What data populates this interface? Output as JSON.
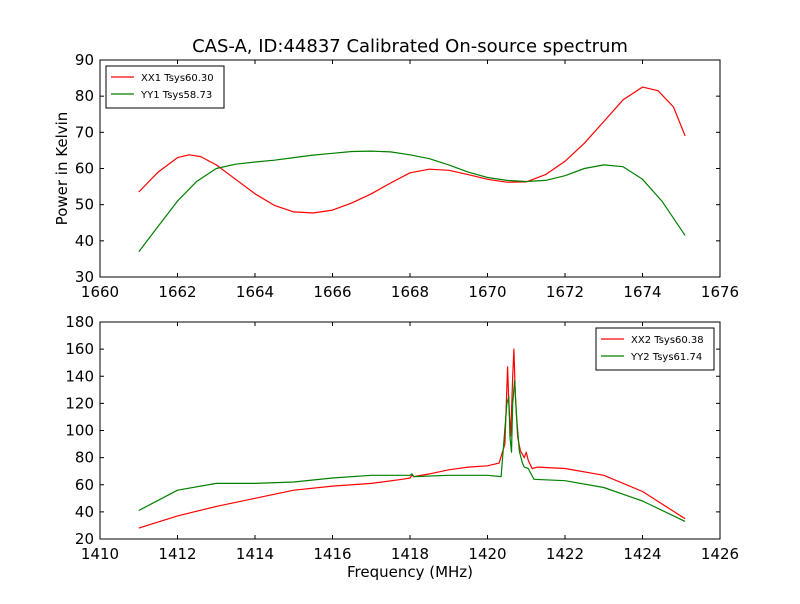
{
  "figure": {
    "title": "CAS-A, ID:44837 Calibrated On-source spectrum"
  },
  "chart_data": [
    {
      "type": "line",
      "title": "CAS-A, ID:44837 Calibrated On-source spectrum",
      "xlabel": "",
      "ylabel": "Power in Kelvin",
      "xlim": [
        1660,
        1676
      ],
      "ylim": [
        30,
        90
      ],
      "xticks": [
        1660,
        1662,
        1664,
        1666,
        1668,
        1670,
        1672,
        1674,
        1676
      ],
      "yticks": [
        30,
        40,
        50,
        60,
        70,
        80,
        90
      ],
      "legend_position": "top-left",
      "grid": false,
      "series": [
        {
          "name": "XX1 Tsys60.30",
          "color": "#ff0000",
          "x": [
            1661.0,
            1661.5,
            1662.0,
            1662.3,
            1662.6,
            1663.0,
            1663.5,
            1664.0,
            1664.5,
            1665.0,
            1665.5,
            1666.0,
            1666.5,
            1667.0,
            1667.5,
            1668.0,
            1668.5,
            1669.0,
            1669.5,
            1670.0,
            1670.5,
            1671.0,
            1671.5,
            1672.0,
            1672.5,
            1673.0,
            1673.5,
            1674.0,
            1674.4,
            1674.8,
            1675.1
          ],
          "y": [
            53.5,
            59,
            63,
            63.8,
            63.3,
            61,
            57,
            53,
            49.8,
            48,
            47.7,
            48.5,
            50.5,
            53,
            56,
            58.8,
            59.8,
            59.5,
            58.3,
            57,
            56.2,
            56.3,
            58.3,
            62,
            67,
            73,
            79,
            82.5,
            81.5,
            77,
            69
          ]
        },
        {
          "name": "YY1 Tsys58.73",
          "color": "#008000",
          "x": [
            1661.0,
            1661.5,
            1662.0,
            1662.5,
            1663.0,
            1663.5,
            1664.0,
            1664.5,
            1665.0,
            1665.5,
            1666.0,
            1666.5,
            1667.0,
            1667.5,
            1668.0,
            1668.5,
            1669.0,
            1669.5,
            1670.0,
            1670.5,
            1671.0,
            1671.5,
            1672.0,
            1672.5,
            1673.0,
            1673.5,
            1674.0,
            1674.5,
            1675.1
          ],
          "y": [
            37,
            44,
            51,
            56.5,
            60,
            61.2,
            61.8,
            62.3,
            63,
            63.7,
            64.2,
            64.7,
            64.8,
            64.6,
            63.8,
            62.7,
            61,
            59,
            57.5,
            56.7,
            56.4,
            56.7,
            58,
            60,
            61,
            60.5,
            57,
            51,
            41.5
          ]
        }
      ]
    },
    {
      "type": "line",
      "title": "",
      "xlabel": "Frequency (MHz)",
      "ylabel": "",
      "xlim": [
        1410,
        1426
      ],
      "ylim": [
        20,
        180
      ],
      "xticks": [
        1410,
        1412,
        1414,
        1416,
        1418,
        1420,
        1422,
        1424,
        1426
      ],
      "yticks": [
        20,
        40,
        60,
        80,
        100,
        120,
        140,
        160,
        180
      ],
      "legend_position": "top-right",
      "grid": false,
      "series": [
        {
          "name": "XX2 Tsys60.38",
          "color": "#ff0000",
          "x": [
            1411.0,
            1412.0,
            1413.0,
            1414.0,
            1415.0,
            1416.0,
            1417.0,
            1417.8,
            1418.0,
            1418.05,
            1418.1,
            1418.5,
            1419.0,
            1419.5,
            1420.0,
            1420.3,
            1420.45,
            1420.52,
            1420.55,
            1420.6,
            1420.65,
            1420.68,
            1420.72,
            1420.78,
            1420.85,
            1420.95,
            1421.0,
            1421.05,
            1421.15,
            1421.3,
            1422.0,
            1423.0,
            1424.0,
            1425.1
          ],
          "y": [
            28,
            37,
            44,
            50,
            56,
            59,
            61,
            64,
            65,
            67,
            66,
            68,
            71,
            73,
            74,
            76,
            90,
            147,
            120,
            96,
            140,
            160,
            125,
            95,
            85,
            80,
            84,
            78,
            72,
            73,
            72,
            67,
            55,
            35
          ]
        },
        {
          "name": "YY2 Tsys61.74",
          "color": "#008000",
          "x": [
            1411.0,
            1412.0,
            1413.0,
            1414.0,
            1415.0,
            1416.0,
            1417.0,
            1418.0,
            1418.05,
            1418.1,
            1419.0,
            1420.0,
            1420.35,
            1420.5,
            1420.55,
            1420.58,
            1420.62,
            1420.65,
            1420.7,
            1420.75,
            1420.82,
            1420.9,
            1420.95,
            1421.05,
            1421.2,
            1422.0,
            1423.0,
            1424.0,
            1425.1
          ],
          "y": [
            41,
            56,
            61,
            61,
            62,
            65,
            67,
            67,
            68,
            66,
            67,
            67,
            66,
            120,
            125,
            95,
            84,
            120,
            137,
            110,
            85,
            76,
            73,
            72,
            64,
            63,
            58,
            48,
            33
          ]
        }
      ]
    }
  ]
}
